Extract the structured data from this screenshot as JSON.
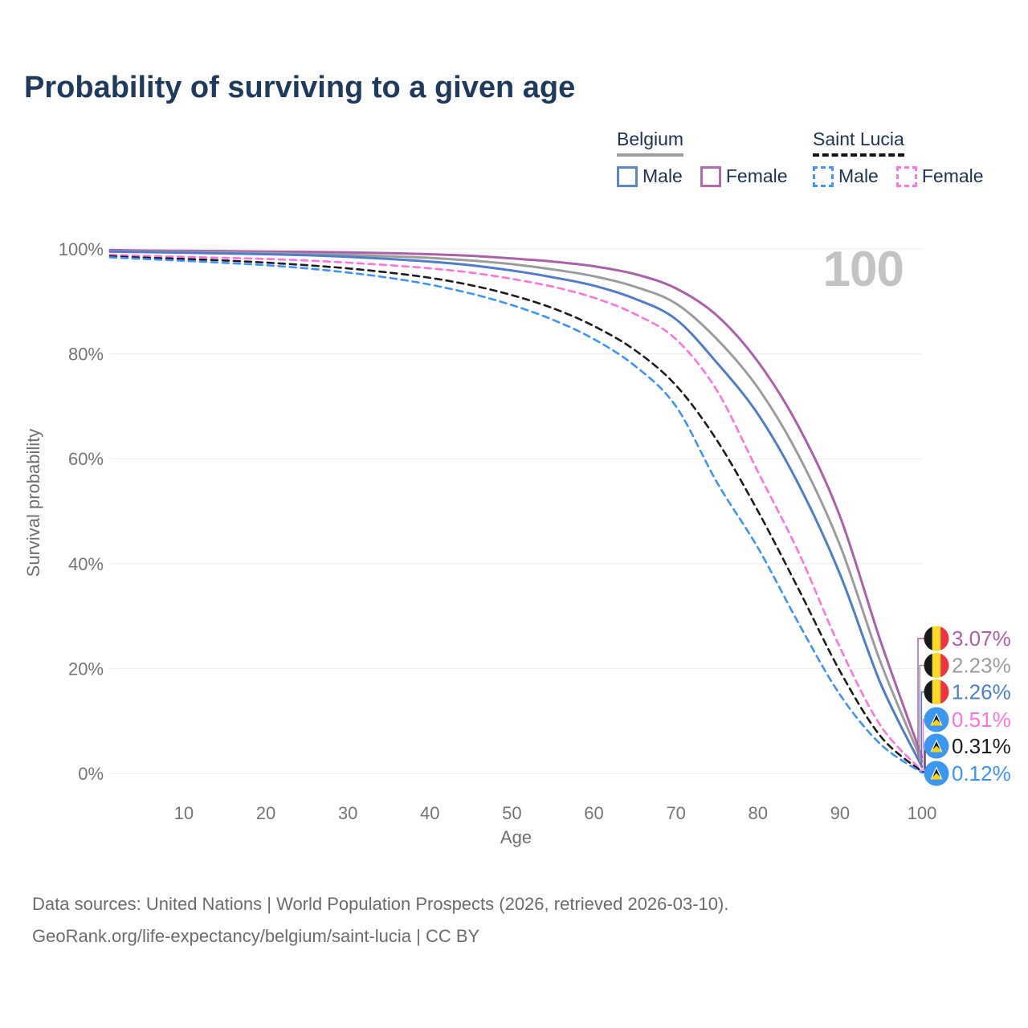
{
  "title": "Probability of surviving to a given age",
  "watermark": "100",
  "legend": {
    "belgium": {
      "country": "Belgium",
      "line_style": "solid",
      "line_color": "#9e9e9e",
      "male_label": "Male",
      "male_color": "#5b87c5",
      "female_label": "Female",
      "female_color": "#b06cad"
    },
    "saint_lucia": {
      "country": "Saint Lucia",
      "line_style": "dashed",
      "line_color": "#141414",
      "male_label": "Male",
      "male_color": "#4296f5",
      "female_label": "Female",
      "female_color": "#ff77dd"
    }
  },
  "chart_data": {
    "type": "line",
    "title": "Probability of surviving to a given age",
    "xlabel": "Age",
    "ylabel": "Survival probability",
    "xlim": [
      1,
      100
    ],
    "ylim": [
      0,
      100
    ],
    "grid": "horizontal",
    "legend_position": "top-right",
    "x_tick_labels": [
      "10",
      "20",
      "30",
      "40",
      "50",
      "60",
      "70",
      "80",
      "90",
      "100"
    ],
    "x_tick_values": [
      10,
      20,
      30,
      40,
      50,
      60,
      70,
      80,
      90,
      100
    ],
    "y_tick_labels": [
      "0%",
      "20%",
      "40%",
      "60%",
      "80%",
      "100%"
    ],
    "y_tick_values": [
      0,
      20,
      40,
      60,
      80,
      100
    ],
    "x": [
      1,
      5,
      10,
      15,
      20,
      25,
      30,
      35,
      40,
      45,
      50,
      55,
      60,
      65,
      70,
      75,
      80,
      85,
      90,
      95,
      100
    ],
    "series": [
      {
        "name": "Belgium Female",
        "country": "Belgium",
        "sex": "Female",
        "color": "#aa61a9",
        "dash": false,
        "flag": "belgium",
        "end_label": "3.07%",
        "values": [
          99.8,
          99.7,
          99.65,
          99.6,
          99.5,
          99.45,
          99.35,
          99.2,
          99.0,
          98.7,
          98.2,
          97.6,
          96.7,
          95.2,
          92.5,
          87.3,
          78.5,
          66.0,
          49.0,
          25.0,
          3.07
        ]
      },
      {
        "name": "Belgium (both sexes)",
        "country": "Belgium",
        "sex": "Both",
        "color": "#9c9c9c",
        "dash": false,
        "flag": "belgium",
        "end_label": "2.23%",
        "values": [
          99.6,
          99.5,
          99.45,
          99.35,
          99.2,
          99.05,
          98.9,
          98.6,
          98.3,
          97.8,
          97.1,
          96.1,
          94.8,
          92.8,
          89.6,
          82.8,
          73.5,
          60.5,
          43.5,
          21.0,
          2.23
        ]
      },
      {
        "name": "Belgium Male",
        "country": "Belgium",
        "sex": "Male",
        "color": "#4f7dc7",
        "dash": false,
        "flag": "belgium",
        "end_label": "1.26%",
        "values": [
          99.5,
          99.4,
          99.3,
          99.15,
          99.0,
          98.8,
          98.5,
          98.1,
          97.6,
          96.9,
          95.9,
          94.6,
          93.0,
          90.5,
          86.6,
          78.3,
          68.5,
          55.0,
          38.0,
          17.0,
          1.26
        ]
      },
      {
        "name": "Saint Lucia Female",
        "country": "Saint Lucia",
        "sex": "Female",
        "color": "#ff74da",
        "dash": true,
        "flag": "saint-lucia",
        "end_label": "0.51%",
        "values": [
          98.9,
          98.7,
          98.5,
          98.3,
          98.1,
          97.8,
          97.4,
          96.9,
          96.3,
          95.5,
          94.3,
          92.8,
          90.7,
          87.6,
          82.8,
          73.0,
          57.5,
          42.0,
          24.0,
          9.0,
          0.51
        ]
      },
      {
        "name": "Saint Lucia (both sexes)",
        "country": "Saint Lucia",
        "sex": "Both",
        "color": "#1c1c1c",
        "dash": true,
        "flag": "saint-lucia",
        "end_label": "0.31%",
        "values": [
          98.6,
          98.35,
          98.1,
          97.8,
          97.4,
          96.9,
          96.3,
          95.5,
          94.5,
          93.1,
          91.2,
          88.7,
          85.3,
          80.7,
          74.0,
          63.5,
          50.0,
          35.0,
          19.5,
          7.0,
          0.31
        ]
      },
      {
        "name": "Saint Lucia Male",
        "country": "Saint Lucia",
        "sex": "Male",
        "color": "#3e93f7",
        "dash": true,
        "flag": "saint-lucia",
        "end_label": "0.12%",
        "values": [
          98.4,
          98.1,
          97.75,
          97.35,
          96.9,
          96.3,
          95.5,
          94.5,
          93.2,
          91.5,
          89.3,
          86.5,
          82.8,
          77.7,
          70.0,
          55.5,
          43.0,
          28.5,
          15.0,
          5.5,
          0.12
        ]
      }
    ],
    "flag_colors": {
      "belgium": {
        "black": "#1a1a1a",
        "yellow": "#FDDA24",
        "red": "#EF3340"
      },
      "saint_lucia": {
        "blue": "#3b97f2",
        "white": "#ffffff",
        "black": "#141414",
        "yellow": "#FCD116"
      }
    }
  },
  "footer": {
    "line1": "Data sources: United Nations | World Population Prospects (2026, retrieved 2026-03-10).",
    "line2": "GeoRank.org/life-expectancy/belgium/saint-lucia | CC BY"
  }
}
